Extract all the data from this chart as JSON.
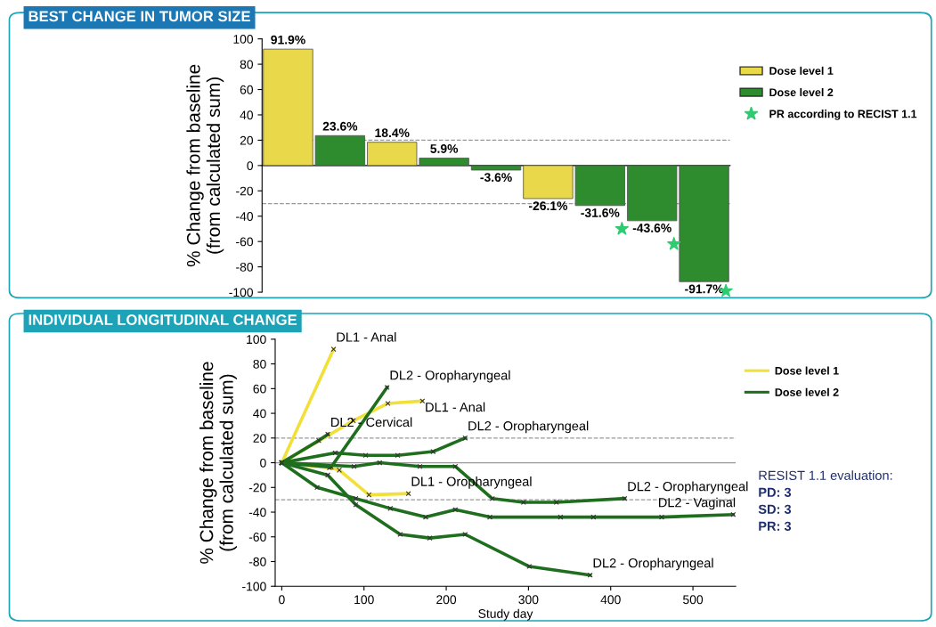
{
  "chart_data": [
    {
      "type": "bar",
      "title": "BEST CHANGE IN TUMOR SIZE",
      "ylabel": "% Change from baseline\n(from calculated sum)",
      "categories": [
        null,
        null,
        null,
        null,
        null,
        null,
        null,
        null,
        null
      ],
      "series": [
        {
          "name": "Dose level 1",
          "color": "#e8d84a",
          "values": [
            91.9,
            null,
            18.4,
            null,
            null,
            -26.1,
            null,
            null,
            null
          ],
          "value_labels": [
            "91.9%",
            null,
            "18.4%",
            null,
            null,
            "-26.1%",
            null,
            null,
            null
          ]
        },
        {
          "name": "Dose level 2",
          "color": "#2e8b2e",
          "values": [
            null,
            23.6,
            null,
            5.9,
            -3.6,
            null,
            -31.6,
            -43.6,
            -91.7
          ],
          "value_labels": [
            null,
            "23.6%",
            null,
            "5.9%",
            "-3.6%",
            null,
            "-31.6%",
            "-43.6%",
            "-91.7%"
          ]
        },
        {
          "type": "scatter",
          "name": "PR according to RECIST 1.1",
          "color": "#2ecc71",
          "marker": "star",
          "values": [
            null,
            null,
            null,
            null,
            null,
            null,
            -50,
            -62,
            -99
          ]
        }
      ],
      "ylim": [
        -100,
        100
      ],
      "yticks": [
        -100,
        -80,
        -60,
        -40,
        -20,
        0,
        20,
        40,
        60,
        80,
        100
      ],
      "ref_lines": [
        {
          "axis": "y",
          "value": 20,
          "line_style": "dashed",
          "color": "#999999"
        },
        {
          "axis": "y",
          "value": -30,
          "line_style": "dashed",
          "color": "#999999"
        }
      ],
      "tick_labels": "y",
      "grid": false,
      "legend": "right"
    },
    {
      "type": "line",
      "title": "INDIVIDUAL LONGITUDINAL CHANGE",
      "ylabel": "% Change from baseline\n(from calculated sum)",
      "xlabel": "Study day",
      "marker": "cross",
      "line_style": "solid",
      "series": [
        {
          "name": "Dose level 1",
          "color": "#f2e03a",
          "x": [
            0,
            63
          ],
          "values": [
            0,
            91.9
          ]
        },
        {
          "color": "#f2e03a",
          "x": [
            0,
            87,
            129,
            171
          ],
          "values": [
            0,
            34,
            48,
            50
          ]
        },
        {
          "color": "#f2e03a",
          "x": [
            0,
            58,
            70,
            106,
            154
          ],
          "values": [
            0,
            -4,
            -6,
            -26,
            -25
          ]
        },
        {
          "name": "Dose level 2",
          "color": "#1e6e1e",
          "x": [
            0,
            45,
            56
          ],
          "values": [
            0,
            18,
            23
          ]
        },
        {
          "color": "#1e6e1e",
          "x": [
            0,
            60,
            128
          ],
          "values": [
            0,
            -3.6,
            61
          ]
        },
        {
          "color": "#1e6e1e",
          "x": [
            0,
            65,
            102,
            141,
            184,
            223
          ],
          "values": [
            0,
            8,
            6,
            6,
            9,
            20
          ]
        },
        {
          "color": "#1e6e1e",
          "x": [
            0,
            88,
            119,
            168,
            211,
            256,
            294,
            334,
            417
          ],
          "values": [
            0,
            -3,
            0,
            -3,
            -3,
            -29,
            -32,
            -32,
            -29
          ]
        },
        {
          "color": "#1e6e1e",
          "x": [
            0,
            43,
            90,
            132,
            175,
            211,
            253,
            339,
            379,
            462,
            549
          ],
          "values": [
            0,
            -20,
            -29,
            -37,
            -44,
            -38,
            -44,
            -44,
            -44,
            -44,
            -42
          ]
        },
        {
          "color": "#1e6e1e",
          "x": [
            0,
            56,
            90,
            144,
            180,
            223,
            301,
            375
          ],
          "values": [
            0,
            -10,
            -34,
            -58,
            -61,
            -58,
            -84,
            -91
          ]
        }
      ],
      "annotations": [
        {
          "text": "DL1 - Anal",
          "x": 63,
          "y": 91.9
        },
        {
          "text": "DL1 - Anal",
          "x": 171,
          "y": 50
        },
        {
          "text": "DL1 - Oropharyngeal",
          "x": 154,
          "y": -25
        },
        {
          "text": "DL2 - Cervical",
          "x": 56,
          "y": 23
        },
        {
          "text": "DL2 - Oropharyngeal",
          "x": 128,
          "y": 61
        },
        {
          "text": "DL2 - Oropharyngeal",
          "x": 223,
          "y": 20
        },
        {
          "text": "DL2 - Oropharyngeal",
          "x": 417,
          "y": -29
        },
        {
          "text": "DL2 - Vaginal",
          "x": 549,
          "y": -42
        },
        {
          "text": "DL2 - Oropharyngeal",
          "x": 375,
          "y": -91
        },
        "RESIST 1.1 evaluation:",
        "PD: 3",
        "SD: 3",
        "PR: 3"
      ],
      "xlim": [
        -8,
        552
      ],
      "xticks": [
        0,
        100,
        200,
        300,
        400,
        500
      ],
      "ylim": [
        -100,
        100
      ],
      "yticks": [
        -100,
        -80,
        -60,
        -40,
        -20,
        0,
        20,
        40,
        60,
        80,
        100
      ],
      "ref_lines": [
        {
          "axis": "y",
          "value": 20,
          "line_style": "dashed",
          "color": "#999999"
        },
        {
          "axis": "y",
          "value": -30,
          "line_style": "dashed",
          "color": "#999999"
        },
        {
          "axis": "y",
          "value": 0,
          "line_style": "solid",
          "color": "#999999"
        }
      ],
      "grid": false,
      "legend": "right"
    }
  ]
}
